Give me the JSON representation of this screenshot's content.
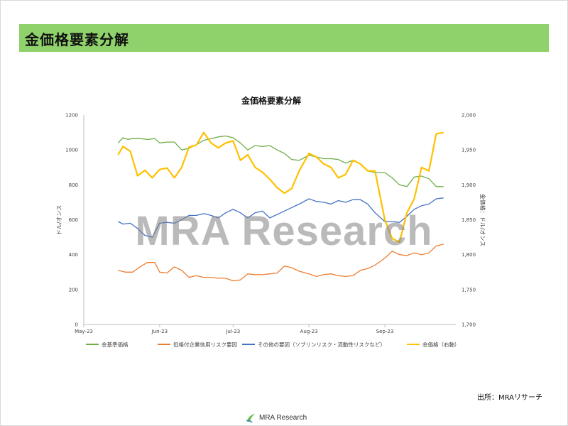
{
  "header": {
    "title": "金価格要素分解"
  },
  "source_note": "出所：MRAリサーチ",
  "watermark": "MRA Research",
  "footer": {
    "logo_text": "MRA Research"
  },
  "colors": {
    "header_bar": "#8fd16a",
    "series": [
      "#70ad47",
      "#ed7d31",
      "#4472c4",
      "#ffc000"
    ]
  },
  "chart_data": {
    "type": "line",
    "title": "金価格要素分解",
    "ylabel": "ドル/オンス",
    "y2label": "金価格：ドル/オンス",
    "ylim": [
      0,
      1200
    ],
    "yticks": [
      "0",
      "200",
      "400",
      "600",
      "800",
      "1000",
      "1200"
    ],
    "y2lim": [
      1700,
      2000
    ],
    "y2ticks": [
      "1,700",
      "1,750",
      "1,800",
      "1,850",
      "1,900",
      "1,950",
      "2,000"
    ],
    "xlim": [
      "2023-05-01",
      "2023-09-30"
    ],
    "xticks": [
      {
        "label": "May-23",
        "date": "2023-05-01"
      },
      {
        "label": "Jun-23",
        "date": "2023-06-01"
      },
      {
        "label": "Jul-23",
        "date": "2023-07-01"
      },
      {
        "label": "Aug-23",
        "date": "2023-08-01"
      },
      {
        "label": "Sep-23",
        "date": "2023-09-01"
      }
    ],
    "grid": false,
    "legend": "bottom",
    "series": [
      {
        "name": "金基準価格",
        "axis": "left",
        "points": [
          [
            "2023-05-15",
            1040
          ],
          [
            "2023-05-17",
            1070
          ],
          [
            "2023-05-19",
            1060
          ],
          [
            "2023-05-21",
            1065
          ],
          [
            "2023-05-24",
            1065
          ],
          [
            "2023-05-27",
            1060
          ],
          [
            "2023-05-30",
            1065
          ],
          [
            "2023-06-01",
            1040
          ],
          [
            "2023-06-04",
            1045
          ],
          [
            "2023-06-07",
            1045
          ],
          [
            "2023-06-10",
            1000
          ],
          [
            "2023-06-13",
            1010
          ],
          [
            "2023-06-16",
            1030
          ],
          [
            "2023-06-19",
            1055
          ],
          [
            "2023-06-22",
            1065
          ],
          [
            "2023-06-25",
            1075
          ],
          [
            "2023-06-28",
            1080
          ],
          [
            "2023-07-01",
            1070
          ],
          [
            "2023-07-04",
            1040
          ],
          [
            "2023-07-07",
            1000
          ],
          [
            "2023-07-10",
            1025
          ],
          [
            "2023-07-13",
            1020
          ],
          [
            "2023-07-16",
            1025
          ],
          [
            "2023-07-19",
            1000
          ],
          [
            "2023-07-22",
            980
          ],
          [
            "2023-07-25",
            945
          ],
          [
            "2023-07-28",
            940
          ],
          [
            "2023-08-01",
            970
          ],
          [
            "2023-08-04",
            960
          ],
          [
            "2023-08-07",
            950
          ],
          [
            "2023-08-10",
            950
          ],
          [
            "2023-08-13",
            945
          ],
          [
            "2023-08-16",
            925
          ],
          [
            "2023-08-19",
            940
          ],
          [
            "2023-08-22",
            920
          ],
          [
            "2023-08-25",
            880
          ],
          [
            "2023-08-28",
            870
          ],
          [
            "2023-09-01",
            870
          ],
          [
            "2023-09-04",
            840
          ],
          [
            "2023-09-07",
            800
          ],
          [
            "2023-09-10",
            790
          ],
          [
            "2023-09-13",
            845
          ],
          [
            "2023-09-16",
            850
          ],
          [
            "2023-09-19",
            835
          ],
          [
            "2023-09-22",
            790
          ],
          [
            "2023-09-25",
            790
          ]
        ]
      },
      {
        "name": "低格付企業信用リスク要因",
        "axis": "left",
        "points": [
          [
            "2023-05-15",
            310
          ],
          [
            "2023-05-18",
            300
          ],
          [
            "2023-05-21",
            300
          ],
          [
            "2023-05-24",
            330
          ],
          [
            "2023-05-27",
            355
          ],
          [
            "2023-05-30",
            355
          ],
          [
            "2023-06-01",
            300
          ],
          [
            "2023-06-04",
            295
          ],
          [
            "2023-06-07",
            330
          ],
          [
            "2023-06-10",
            310
          ],
          [
            "2023-06-13",
            270
          ],
          [
            "2023-06-16",
            280
          ],
          [
            "2023-06-19",
            270
          ],
          [
            "2023-06-22",
            270
          ],
          [
            "2023-06-25",
            265
          ],
          [
            "2023-06-28",
            265
          ],
          [
            "2023-07-01",
            250
          ],
          [
            "2023-07-04",
            255
          ],
          [
            "2023-07-07",
            290
          ],
          [
            "2023-07-10",
            285
          ],
          [
            "2023-07-13",
            285
          ],
          [
            "2023-07-16",
            290
          ],
          [
            "2023-07-19",
            295
          ],
          [
            "2023-07-22",
            335
          ],
          [
            "2023-07-25",
            325
          ],
          [
            "2023-07-28",
            305
          ],
          [
            "2023-08-01",
            290
          ],
          [
            "2023-08-04",
            275
          ],
          [
            "2023-08-07",
            285
          ],
          [
            "2023-08-10",
            290
          ],
          [
            "2023-08-13",
            280
          ],
          [
            "2023-08-16",
            275
          ],
          [
            "2023-08-19",
            280
          ],
          [
            "2023-08-22",
            310
          ],
          [
            "2023-08-25",
            320
          ],
          [
            "2023-08-28",
            340
          ],
          [
            "2023-09-01",
            380
          ],
          [
            "2023-09-04",
            420
          ],
          [
            "2023-09-07",
            400
          ],
          [
            "2023-09-10",
            395
          ],
          [
            "2023-09-13",
            410
          ],
          [
            "2023-09-16",
            400
          ],
          [
            "2023-09-19",
            410
          ],
          [
            "2023-09-22",
            450
          ],
          [
            "2023-09-25",
            460
          ]
        ]
      },
      {
        "name": "その他の要因（ソブリンリスク・流動性リスクなど）",
        "axis": "left",
        "points": [
          [
            "2023-05-15",
            590
          ],
          [
            "2023-05-17",
            575
          ],
          [
            "2023-05-20",
            580
          ],
          [
            "2023-05-23",
            550
          ],
          [
            "2023-05-26",
            510
          ],
          [
            "2023-05-29",
            500
          ],
          [
            "2023-06-01",
            580
          ],
          [
            "2023-06-04",
            585
          ],
          [
            "2023-06-07",
            580
          ],
          [
            "2023-06-10",
            600
          ],
          [
            "2023-06-13",
            625
          ],
          [
            "2023-06-16",
            625
          ],
          [
            "2023-06-19",
            635
          ],
          [
            "2023-06-22",
            625
          ],
          [
            "2023-06-25",
            610
          ],
          [
            "2023-06-28",
            640
          ],
          [
            "2023-07-01",
            660
          ],
          [
            "2023-07-04",
            640
          ],
          [
            "2023-07-07",
            610
          ],
          [
            "2023-07-10",
            640
          ],
          [
            "2023-07-13",
            650
          ],
          [
            "2023-07-16",
            610
          ],
          [
            "2023-07-19",
            630
          ],
          [
            "2023-07-22",
            650
          ],
          [
            "2023-07-25",
            670
          ],
          [
            "2023-07-28",
            690
          ],
          [
            "2023-08-01",
            720
          ],
          [
            "2023-08-04",
            705
          ],
          [
            "2023-08-07",
            700
          ],
          [
            "2023-08-10",
            690
          ],
          [
            "2023-08-13",
            710
          ],
          [
            "2023-08-16",
            700
          ],
          [
            "2023-08-19",
            715
          ],
          [
            "2023-08-22",
            715
          ],
          [
            "2023-08-25",
            690
          ],
          [
            "2023-08-28",
            640
          ],
          [
            "2023-09-01",
            590
          ],
          [
            "2023-09-04",
            590
          ],
          [
            "2023-09-07",
            585
          ],
          [
            "2023-09-10",
            620
          ],
          [
            "2023-09-13",
            660
          ],
          [
            "2023-09-16",
            680
          ],
          [
            "2023-09-19",
            690
          ],
          [
            "2023-09-22",
            720
          ],
          [
            "2023-09-25",
            725
          ]
        ]
      },
      {
        "name": "金価格（右軸）",
        "axis": "right",
        "points": [
          [
            "2023-05-15",
            1943
          ],
          [
            "2023-05-17",
            1955
          ],
          [
            "2023-05-20",
            1948
          ],
          [
            "2023-05-23",
            1913
          ],
          [
            "2023-05-26",
            1921
          ],
          [
            "2023-05-29",
            1910
          ],
          [
            "2023-06-01",
            1922
          ],
          [
            "2023-06-04",
            1924
          ],
          [
            "2023-06-07",
            1910
          ],
          [
            "2023-06-10",
            1925
          ],
          [
            "2023-06-13",
            1954
          ],
          [
            "2023-06-16",
            1957
          ],
          [
            "2023-06-19",
            1975
          ],
          [
            "2023-06-22",
            1960
          ],
          [
            "2023-06-25",
            1953
          ],
          [
            "2023-06-28",
            1960
          ],
          [
            "2023-07-01",
            1963
          ],
          [
            "2023-07-04",
            1935
          ],
          [
            "2023-07-07",
            1943
          ],
          [
            "2023-07-10",
            1925
          ],
          [
            "2023-07-13",
            1918
          ],
          [
            "2023-07-16",
            1908
          ],
          [
            "2023-07-19",
            1896
          ],
          [
            "2023-07-22",
            1888
          ],
          [
            "2023-07-25",
            1895
          ],
          [
            "2023-07-28",
            1920
          ],
          [
            "2023-08-01",
            1945
          ],
          [
            "2023-08-04",
            1940
          ],
          [
            "2023-08-07",
            1930
          ],
          [
            "2023-08-10",
            1925
          ],
          [
            "2023-08-13",
            1910
          ],
          [
            "2023-08-16",
            1915
          ],
          [
            "2023-08-19",
            1935
          ],
          [
            "2023-08-22",
            1930
          ],
          [
            "2023-08-25",
            1920
          ],
          [
            "2023-08-28",
            1920
          ],
          [
            "2023-09-01",
            1850
          ],
          [
            "2023-09-04",
            1823
          ],
          [
            "2023-09-07",
            1818
          ],
          [
            "2023-09-10",
            1860
          ],
          [
            "2023-09-13",
            1880
          ],
          [
            "2023-09-16",
            1925
          ],
          [
            "2023-09-19",
            1920
          ],
          [
            "2023-09-22",
            1973
          ],
          [
            "2023-09-25",
            1975
          ]
        ]
      }
    ]
  }
}
